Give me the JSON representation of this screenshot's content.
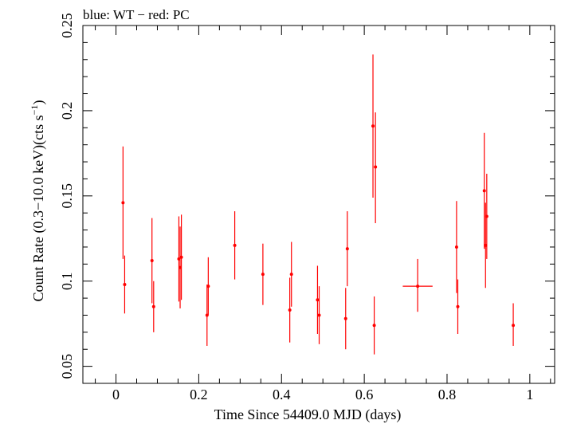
{
  "chart_data": {
    "type": "scatter",
    "title": "blue: WT − red: PC",
    "xlabel": "Time Since 54409.0 MJD (days)",
    "ylabel_main": "Count Rate (0.3−10.0 keV)(cts s",
    "ylabel_sup": "−1",
    "ylabel_end": ")",
    "xlim": [
      -0.08,
      1.06
    ],
    "ylim": [
      0.04,
      0.25
    ],
    "x_ticks": [
      0,
      0.2,
      0.4,
      0.6,
      0.8,
      1
    ],
    "x_tick_labels": [
      "0",
      "0.2",
      "0.4",
      "0.6",
      "0.8",
      "1"
    ],
    "y_ticks": [
      0.05,
      0.1,
      0.15,
      0.2,
      0.25
    ],
    "y_tick_labels": [
      "0.05",
      "0.1",
      "0.15",
      "0.2",
      "0.25"
    ],
    "grid": false,
    "series": [
      {
        "color": "#ff0000",
        "points": [
          {
            "x": 0.017,
            "y": 0.146,
            "ylo": 0.113,
            "yhi": 0.179,
            "xerr": 0.001
          },
          {
            "x": 0.021,
            "y": 0.098,
            "ylo": 0.081,
            "yhi": 0.115,
            "xerr": 0.001
          },
          {
            "x": 0.087,
            "y": 0.112,
            "ylo": 0.087,
            "yhi": 0.137,
            "xerr": 0.001
          },
          {
            "x": 0.091,
            "y": 0.085,
            "ylo": 0.07,
            "yhi": 0.1,
            "xerr": 0.001
          },
          {
            "x": 0.152,
            "y": 0.113,
            "ylo": 0.088,
            "yhi": 0.138,
            "xerr": 0.001
          },
          {
            "x": 0.155,
            "y": 0.108,
            "ylo": 0.084,
            "yhi": 0.132,
            "xerr": 0.001
          },
          {
            "x": 0.158,
            "y": 0.114,
            "ylo": 0.089,
            "yhi": 0.139,
            "xerr": 0.001
          },
          {
            "x": 0.22,
            "y": 0.08,
            "ylo": 0.062,
            "yhi": 0.098,
            "xerr": 0.001
          },
          {
            "x": 0.223,
            "y": 0.097,
            "ylo": 0.08,
            "yhi": 0.114,
            "xerr": 0.001
          },
          {
            "x": 0.287,
            "y": 0.121,
            "ylo": 0.101,
            "yhi": 0.141,
            "xerr": 0.001
          },
          {
            "x": 0.355,
            "y": 0.104,
            "ylo": 0.086,
            "yhi": 0.122,
            "xerr": 0.001
          },
          {
            "x": 0.42,
            "y": 0.083,
            "ylo": 0.064,
            "yhi": 0.102,
            "xerr": 0.001
          },
          {
            "x": 0.424,
            "y": 0.104,
            "ylo": 0.085,
            "yhi": 0.123,
            "xerr": 0.001
          },
          {
            "x": 0.487,
            "y": 0.089,
            "ylo": 0.069,
            "yhi": 0.109,
            "xerr": 0.001
          },
          {
            "x": 0.491,
            "y": 0.08,
            "ylo": 0.063,
            "yhi": 0.097,
            "xerr": 0.001
          },
          {
            "x": 0.555,
            "y": 0.078,
            "ylo": 0.06,
            "yhi": 0.096,
            "xerr": 0.001
          },
          {
            "x": 0.559,
            "y": 0.119,
            "ylo": 0.097,
            "yhi": 0.141,
            "xerr": 0.001
          },
          {
            "x": 0.621,
            "y": 0.191,
            "ylo": 0.149,
            "yhi": 0.233,
            "xerr": 0.001
          },
          {
            "x": 0.624,
            "y": 0.074,
            "ylo": 0.057,
            "yhi": 0.091,
            "xerr": 0.001
          },
          {
            "x": 0.627,
            "y": 0.167,
            "ylo": 0.134,
            "yhi": 0.199,
            "xerr": 0.001
          },
          {
            "x": 0.729,
            "y": 0.097,
            "ylo": 0.082,
            "yhi": 0.113,
            "xerr": 0.036
          },
          {
            "x": 0.823,
            "y": 0.12,
            "ylo": 0.093,
            "yhi": 0.147,
            "xerr": 0.001
          },
          {
            "x": 0.826,
            "y": 0.085,
            "ylo": 0.069,
            "yhi": 0.101,
            "xerr": 0.001
          },
          {
            "x": 0.89,
            "y": 0.153,
            "ylo": 0.119,
            "yhi": 0.187,
            "xerr": 0.001
          },
          {
            "x": 0.893,
            "y": 0.121,
            "ylo": 0.096,
            "yhi": 0.146,
            "xerr": 0.001
          },
          {
            "x": 0.896,
            "y": 0.138,
            "ylo": 0.113,
            "yhi": 0.163,
            "xerr": 0.001
          },
          {
            "x": 0.96,
            "y": 0.074,
            "ylo": 0.062,
            "yhi": 0.087,
            "xerr": 0.001
          }
        ]
      }
    ]
  }
}
